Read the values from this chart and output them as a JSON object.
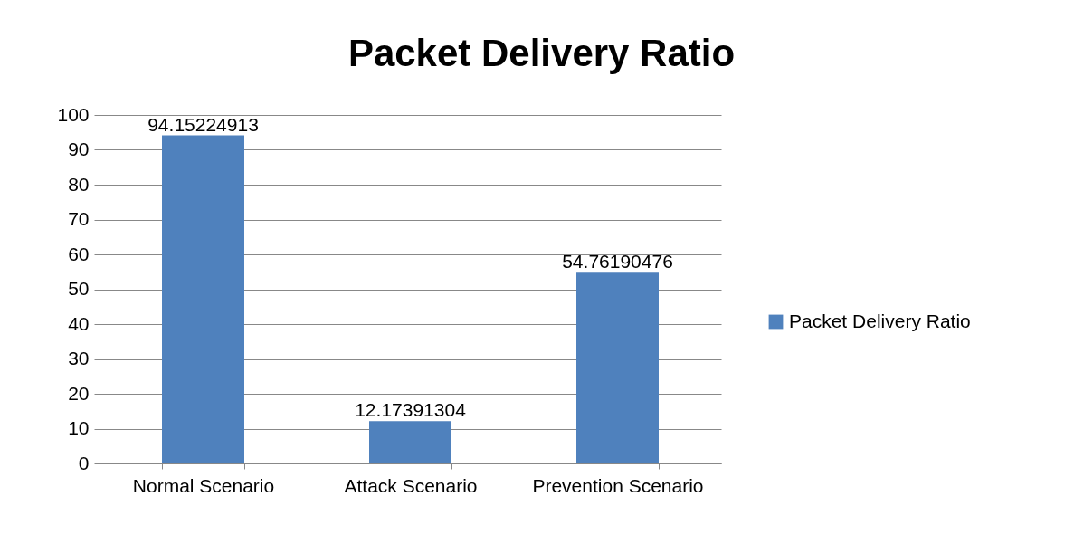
{
  "chart_data": {
    "type": "bar",
    "title": "Packet Delivery Ratio",
    "categories": [
      "Normal Scenario",
      "Attack Scenario",
      "Prevention Scenario"
    ],
    "series": [
      {
        "name": "Packet Delivery Ratio",
        "color": "#4f81bd",
        "values": [
          94.15224913,
          12.17391304,
          54.76190476
        ]
      }
    ],
    "ylim": [
      0,
      100
    ],
    "yticks": [
      0,
      10,
      20,
      30,
      40,
      50,
      60,
      70,
      80,
      90,
      100
    ],
    "grid": "y",
    "legend": "right",
    "data_labels": true
  }
}
